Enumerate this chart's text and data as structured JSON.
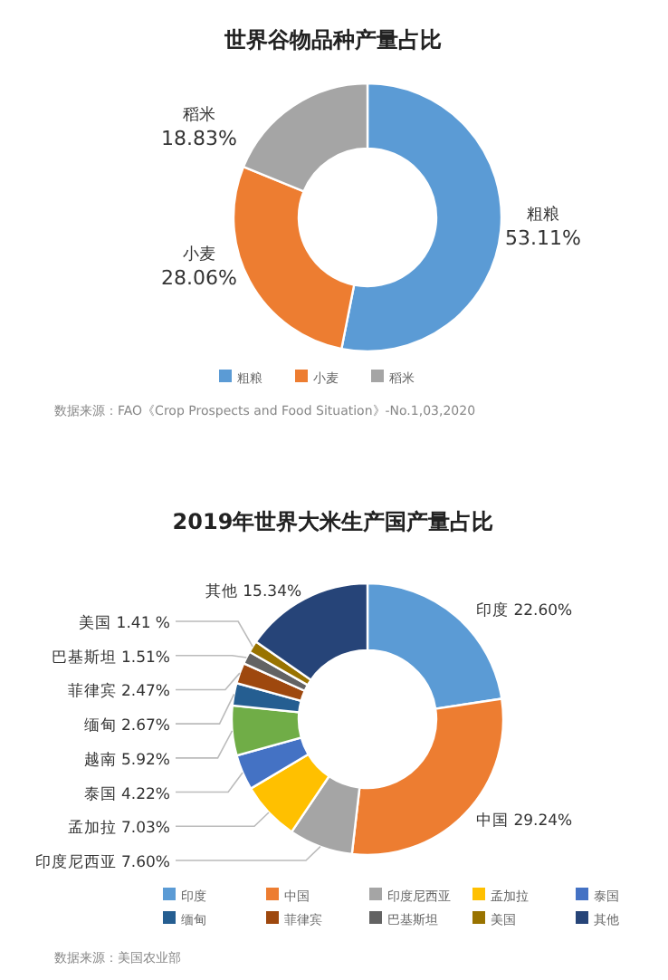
{
  "chart_data": [
    {
      "type": "donut",
      "title": "世界谷物品种产量占比",
      "categories": [
        "粗粮",
        "小麦",
        "稻米"
      ],
      "values": [
        53.11,
        28.06,
        18.83
      ],
      "value_labels": [
        "53.11%",
        "28.06%",
        "18.83%"
      ],
      "colors": [
        "#5b9bd5",
        "#ed7d31",
        "#a5a5a5"
      ],
      "legend": "bottom",
      "annotations": [
        "数据来源：FAO《Crop Prospects and Food Situation》-No.1,03,2020"
      ]
    },
    {
      "type": "donut",
      "title": "2019年世界大米生产国产量占比",
      "categories": [
        "印度",
        "中国",
        "印度尼西亚",
        "孟加拉",
        "泰国",
        "越南",
        "缅甸",
        "菲律宾",
        "巴基斯坦",
        "美国",
        "其他"
      ],
      "values": [
        22.6,
        29.24,
        7.6,
        7.03,
        4.22,
        5.92,
        2.67,
        2.47,
        1.51,
        1.41,
        15.34
      ],
      "value_labels": [
        "22.60%",
        "29.24%",
        "7.60%",
        "7.03%",
        "4.22%",
        "5.92%",
        "2.67%",
        "2.47%",
        "1.51%",
        "1.41 %",
        "15.34%"
      ],
      "colors": [
        "#5b9bd5",
        "#ed7d31",
        "#a5a5a5",
        "#ffc000",
        "#4472c4",
        "#70ad47",
        "#255e91",
        "#9e480e",
        "#636363",
        "#997300",
        "#264478"
      ],
      "legend": "bottom",
      "annotations": [
        "数据来源：美国农业部"
      ]
    }
  ]
}
